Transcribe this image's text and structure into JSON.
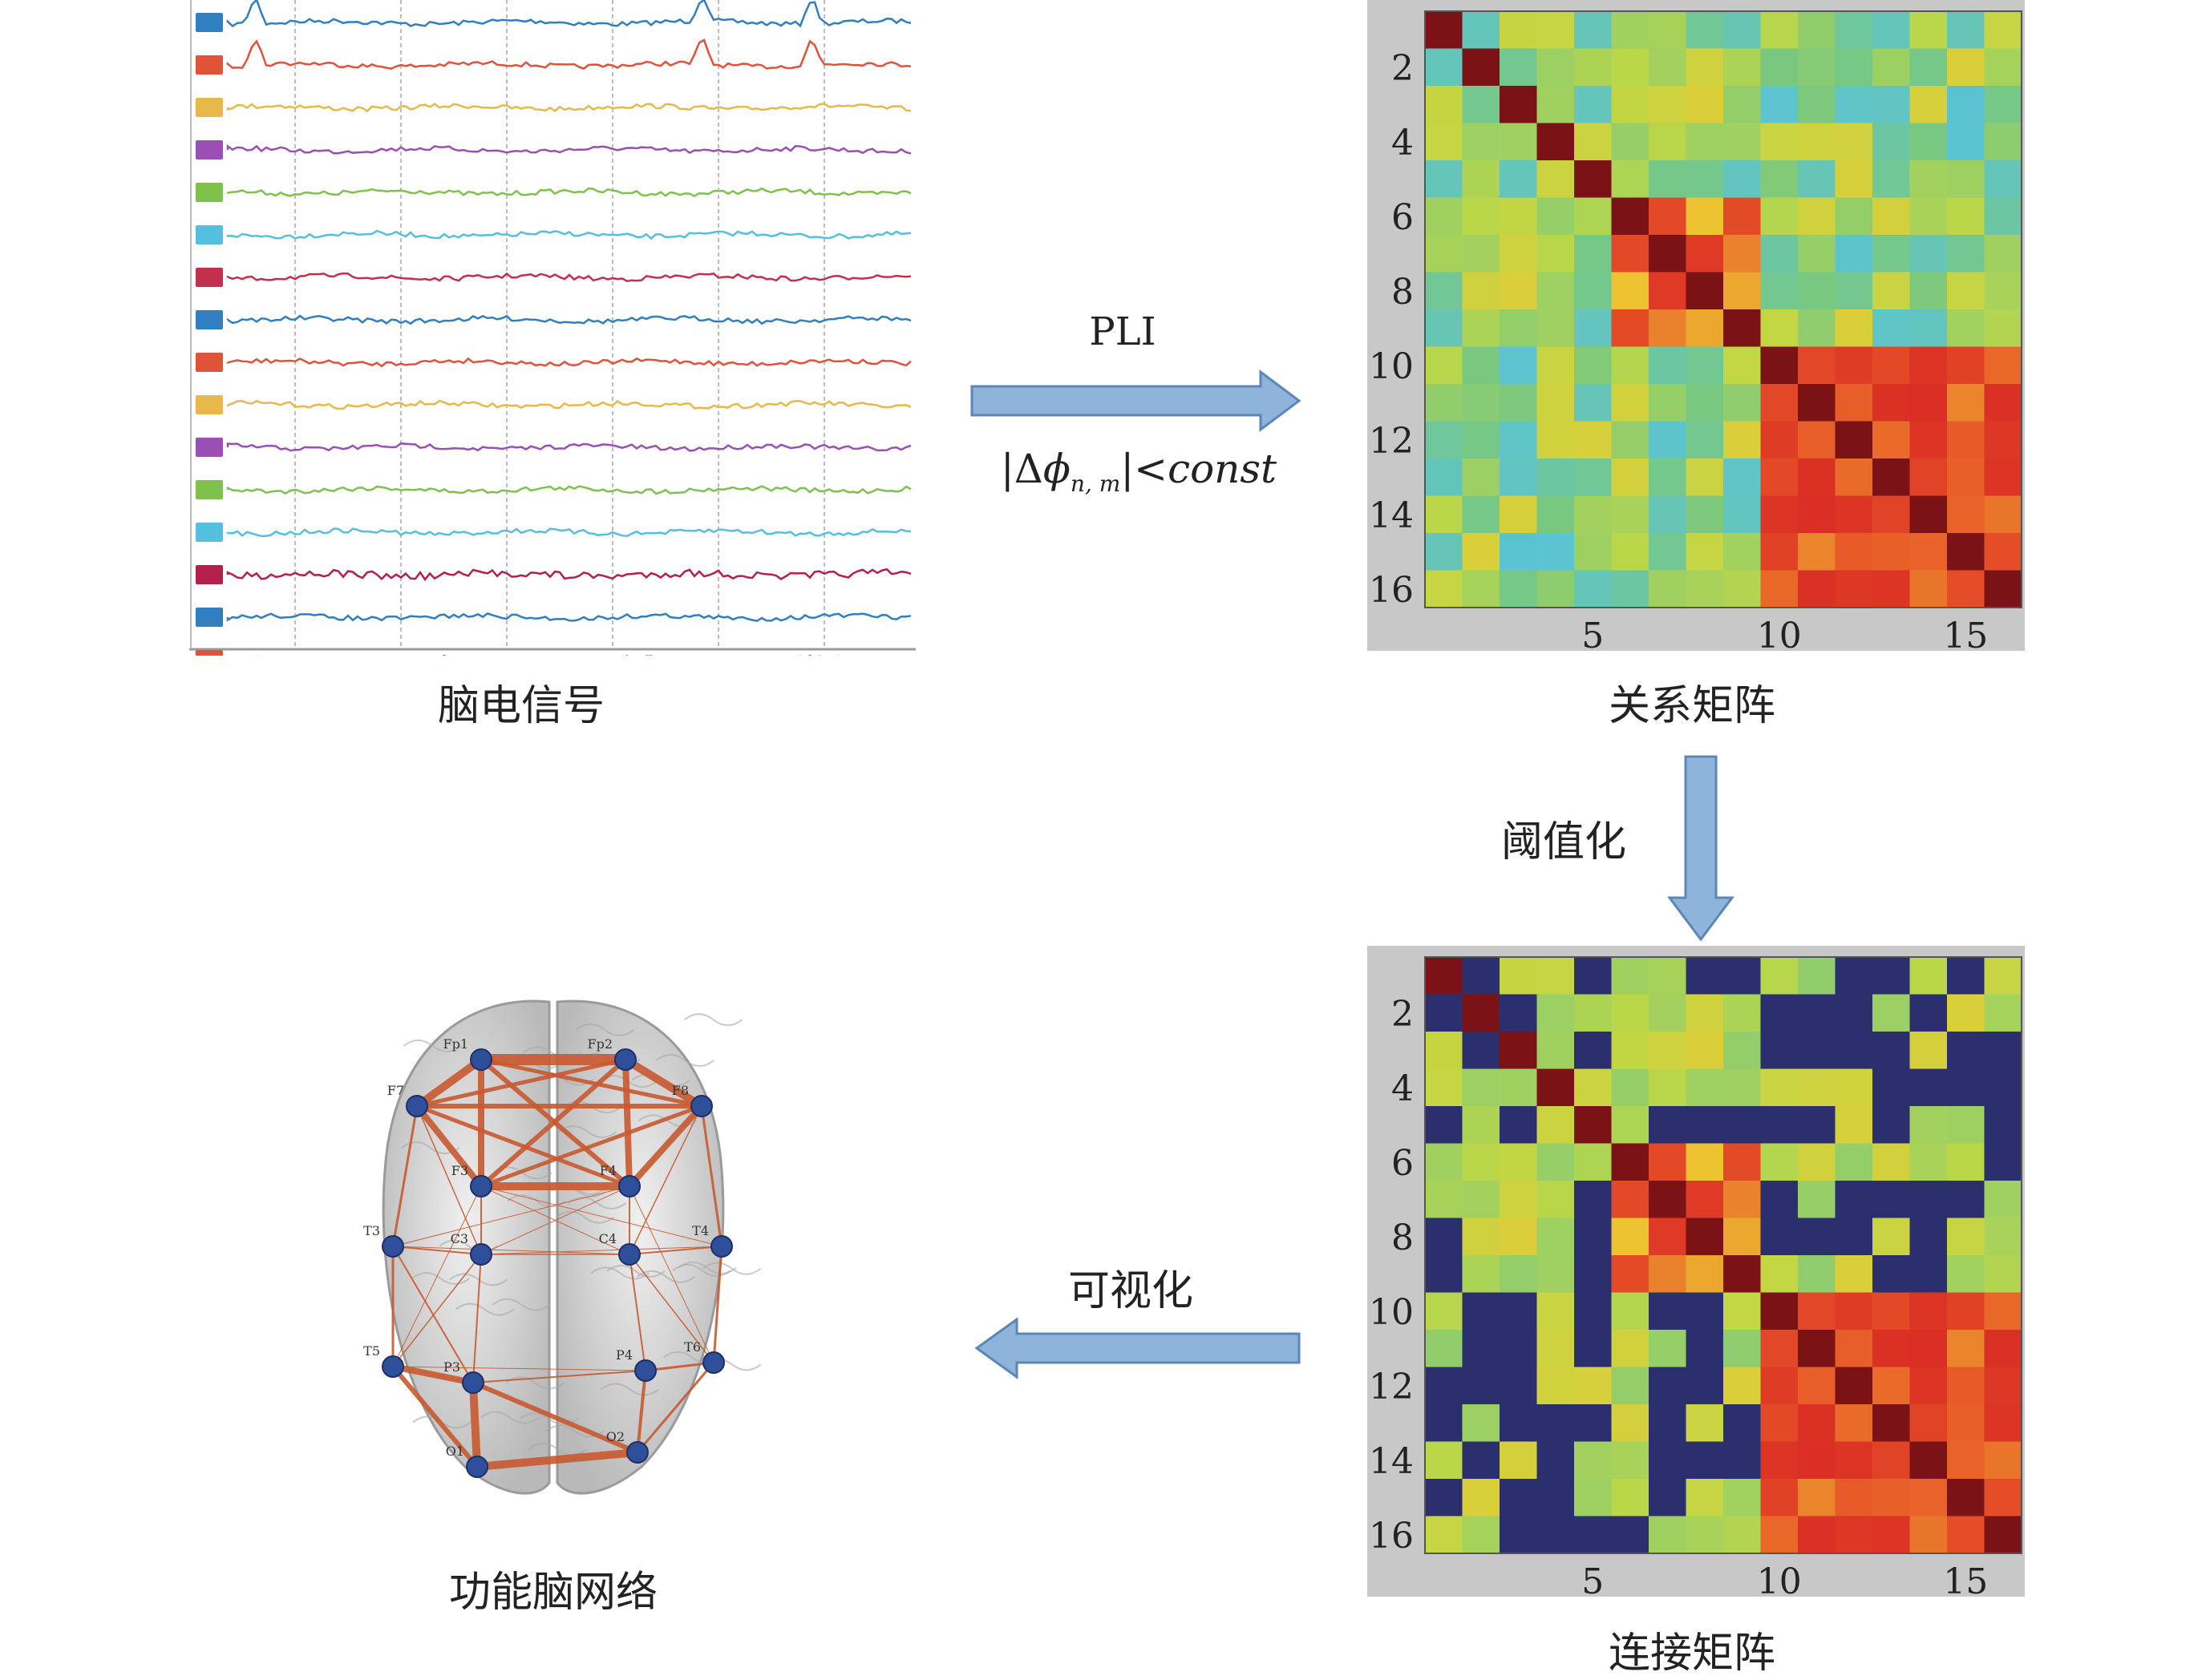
{
  "eeg": {
    "caption": "脑电信号",
    "channel_colors": [
      "#2f7fc1",
      "#e0523a",
      "#e8b84a",
      "#9b4fb5",
      "#7fc24b",
      "#55c0de",
      "#c2304e",
      "#2f7fc1",
      "#e0523a",
      "#e8b84a",
      "#9b4fb5",
      "#7fc24b",
      "#55c0de",
      "#b3204a",
      "#2f7fc1",
      "#e0523a"
    ]
  },
  "relation_matrix": {
    "caption": "关系矩阵",
    "x_ticks": [
      "5",
      "10",
      "15"
    ],
    "y_ticks": [
      "2",
      "4",
      "6",
      "8",
      "10",
      "12",
      "14",
      "16"
    ]
  },
  "connection_matrix": {
    "caption": "连接矩阵",
    "x_ticks": [
      "5",
      "10",
      "15"
    ],
    "y_ticks": [
      "2",
      "4",
      "6",
      "8",
      "10",
      "12",
      "14",
      "16"
    ]
  },
  "brain_network": {
    "caption": "功能脑网络",
    "node_labels": [
      "Fp1",
      "Fp2",
      "F7",
      "F3",
      "F4",
      "F8",
      "T3",
      "C3",
      "C4",
      "T4",
      "T5",
      "P3",
      "P4",
      "T6",
      "O1",
      "O2"
    ]
  },
  "arrows": {
    "pli_label": "PLI",
    "pli_formula_prefix": "|Δ",
    "pli_formula_phi": "ϕ",
    "pli_formula_sub": "n, m",
    "pli_formula_suffix": "|<",
    "pli_formula_const": "const",
    "threshold_label": "阈值化",
    "visualize_label": "可视化"
  },
  "colors": {
    "arrow_fill": "#8fb4dc",
    "arrow_stroke": "#5b86b8",
    "matrix_frame": "#c8c8c8",
    "connection_background": "#2b2f6e",
    "edge_color": "#c85a30",
    "node_color": "#2f4f9a"
  }
}
